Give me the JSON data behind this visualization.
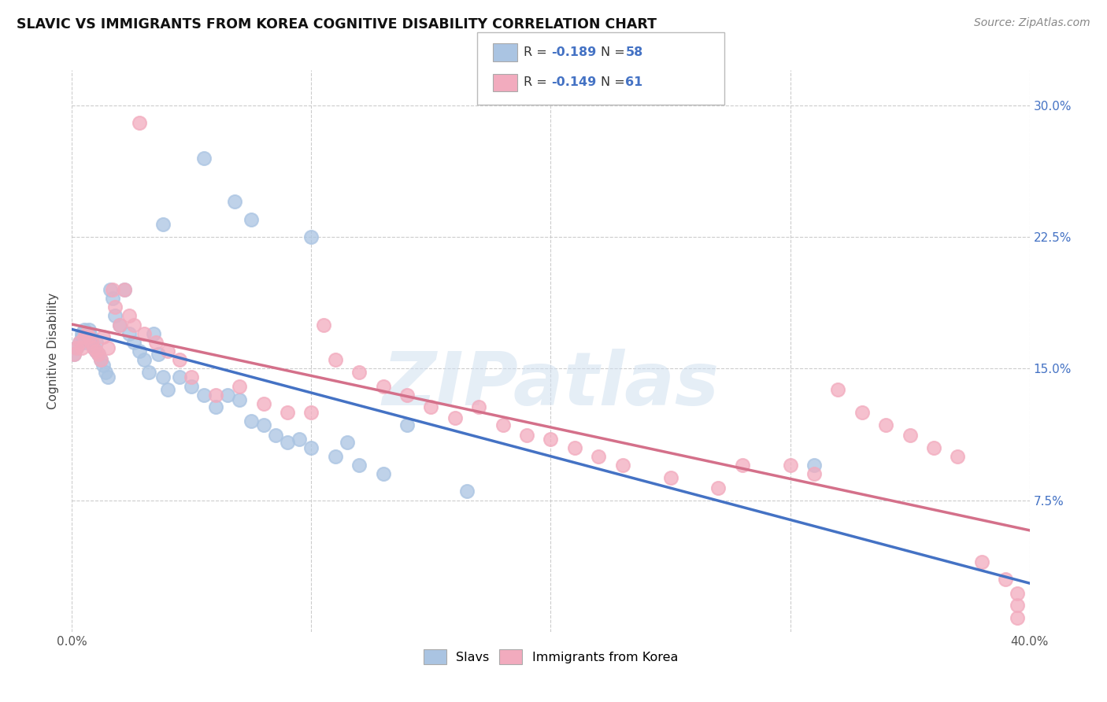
{
  "title": "SLAVIC VS IMMIGRANTS FROM KOREA COGNITIVE DISABILITY CORRELATION CHART",
  "source": "Source: ZipAtlas.com",
  "ylabel": "Cognitive Disability",
  "watermark": "ZIPatlas",
  "xlim": [
    0.0,
    0.4
  ],
  "ylim": [
    0.0,
    0.32
  ],
  "xticks": [
    0.0,
    0.1,
    0.2,
    0.3,
    0.4
  ],
  "xtick_labels": [
    "0.0%",
    "",
    "",
    "",
    "40.0%"
  ],
  "yticks": [
    0.075,
    0.15,
    0.225,
    0.3
  ],
  "ytick_labels": [
    "7.5%",
    "15.0%",
    "22.5%",
    "30.0%"
  ],
  "legend_R_slavs": "-0.189",
  "legend_N_slavs": "58",
  "legend_R_korea": "-0.149",
  "legend_N_korea": "61",
  "slavs_color": "#aac4e2",
  "korea_color": "#f2abbe",
  "slavs_line_color": "#4472c4",
  "korea_line_color": "#d4708a",
  "background_color": "#ffffff",
  "grid_color": "#cccccc",
  "slavs_x": [
    0.001,
    0.002,
    0.003,
    0.004,
    0.004,
    0.005,
    0.005,
    0.006,
    0.007,
    0.007,
    0.008,
    0.008,
    0.009,
    0.01,
    0.01,
    0.011,
    0.012,
    0.013,
    0.014,
    0.015,
    0.016,
    0.017,
    0.018,
    0.02,
    0.022,
    0.024,
    0.026,
    0.028,
    0.03,
    0.032,
    0.034,
    0.036,
    0.038,
    0.04,
    0.045,
    0.05,
    0.055,
    0.06,
    0.065,
    0.07,
    0.075,
    0.08,
    0.085,
    0.09,
    0.095,
    0.1,
    0.11,
    0.115,
    0.12,
    0.13,
    0.038,
    0.055,
    0.068,
    0.075,
    0.1,
    0.14,
    0.165,
    0.31
  ],
  "slavs_y": [
    0.158,
    0.162,
    0.165,
    0.17,
    0.168,
    0.165,
    0.172,
    0.17,
    0.168,
    0.172,
    0.165,
    0.168,
    0.162,
    0.16,
    0.165,
    0.158,
    0.155,
    0.152,
    0.148,
    0.145,
    0.195,
    0.19,
    0.18,
    0.175,
    0.195,
    0.17,
    0.165,
    0.16,
    0.155,
    0.148,
    0.17,
    0.158,
    0.145,
    0.138,
    0.145,
    0.14,
    0.135,
    0.128,
    0.135,
    0.132,
    0.12,
    0.118,
    0.112,
    0.108,
    0.11,
    0.105,
    0.1,
    0.108,
    0.095,
    0.09,
    0.232,
    0.27,
    0.245,
    0.235,
    0.225,
    0.118,
    0.08,
    0.095
  ],
  "korea_x": [
    0.001,
    0.002,
    0.003,
    0.004,
    0.005,
    0.006,
    0.007,
    0.008,
    0.009,
    0.01,
    0.011,
    0.012,
    0.013,
    0.015,
    0.017,
    0.018,
    0.02,
    0.022,
    0.024,
    0.026,
    0.028,
    0.03,
    0.035,
    0.04,
    0.045,
    0.05,
    0.06,
    0.07,
    0.08,
    0.09,
    0.1,
    0.105,
    0.11,
    0.12,
    0.13,
    0.14,
    0.15,
    0.16,
    0.17,
    0.18,
    0.19,
    0.2,
    0.21,
    0.22,
    0.23,
    0.25,
    0.27,
    0.28,
    0.3,
    0.31,
    0.32,
    0.33,
    0.34,
    0.35,
    0.36,
    0.37,
    0.38,
    0.39,
    0.395,
    0.395,
    0.395
  ],
  "korea_y": [
    0.158,
    0.162,
    0.165,
    0.162,
    0.168,
    0.17,
    0.168,
    0.165,
    0.162,
    0.16,
    0.158,
    0.155,
    0.168,
    0.162,
    0.195,
    0.185,
    0.175,
    0.195,
    0.18,
    0.175,
    0.29,
    0.17,
    0.165,
    0.16,
    0.155,
    0.145,
    0.135,
    0.14,
    0.13,
    0.125,
    0.125,
    0.175,
    0.155,
    0.148,
    0.14,
    0.135,
    0.128,
    0.122,
    0.128,
    0.118,
    0.112,
    0.11,
    0.105,
    0.1,
    0.095,
    0.088,
    0.082,
    0.095,
    0.095,
    0.09,
    0.138,
    0.125,
    0.118,
    0.112,
    0.105,
    0.1,
    0.04,
    0.03,
    0.022,
    0.015,
    0.008
  ]
}
